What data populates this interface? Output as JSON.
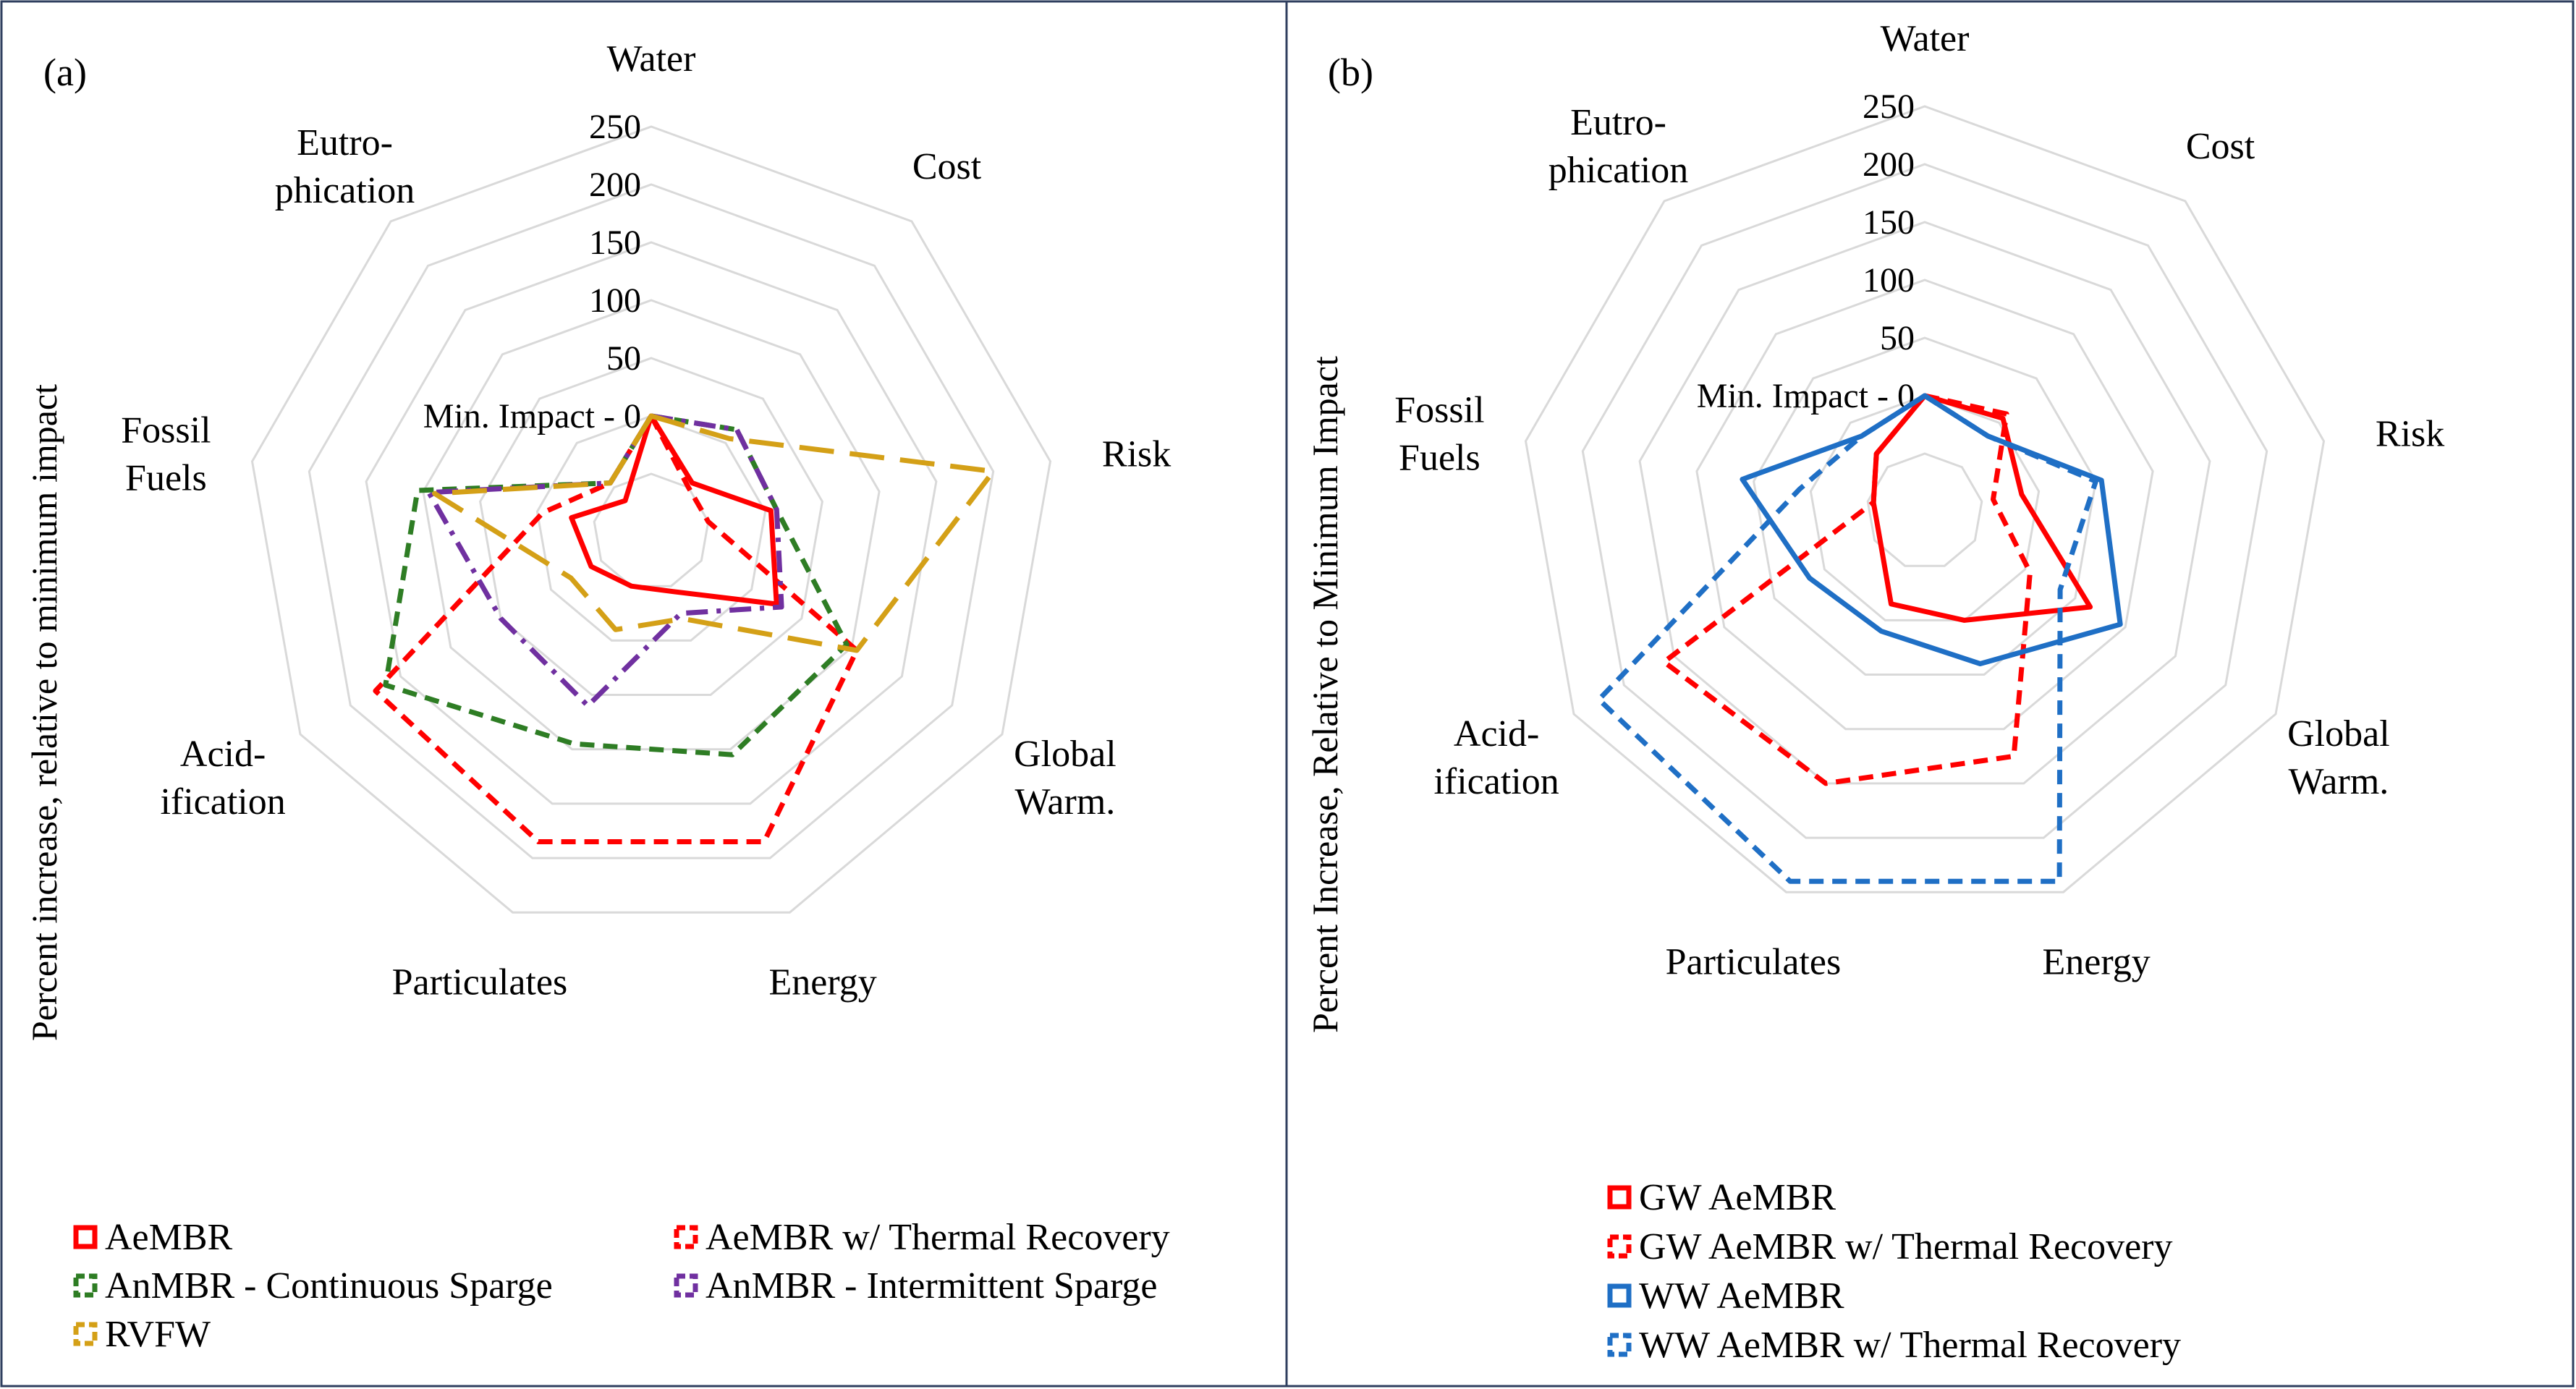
{
  "chart_data": [
    {
      "type": "radar",
      "panel_label": "(a)",
      "ylabel": "Percent increase, relative to minimum impact",
      "axes": [
        "Water",
        "Cost",
        "Risk",
        "Global\nWarm.",
        "Energy",
        "Particulates",
        "Acid-\nification",
        "Fossil\nFuels",
        "Eutro-\nphication"
      ],
      "r_ticks": [
        "Min. Impact - 0",
        "50",
        "100",
        "150",
        "200",
        "250"
      ],
      "rlim": [
        -100,
        250
      ],
      "series": [
        {
          "name": "AeMBR",
          "color": "#ff0000",
          "dash": "solid",
          "values": [
            0,
            -45,
            5,
            25,
            -45,
            -50,
            -40,
            -30,
            -65
          ]
        },
        {
          "name": "AeMBR w/ Thermal Recovery",
          "color": "#ff0000",
          "dash": "dash",
          "values": [
            0,
            -50,
            -50,
            105,
            185,
            185,
            175,
            -5,
            -45
          ]
        },
        {
          "name": "AnMBR - Continuous Sparge",
          "color": "#2e7d24",
          "dash": "dash",
          "values": [
            0,
            15,
            10,
            95,
            105,
            95,
            165,
            105,
            -45
          ]
        },
        {
          "name": "AnMBR - Intermittent Sparge",
          "color": "#7030a0",
          "dash": "dashdot",
          "values": [
            0,
            15,
            10,
            30,
            -25,
            60,
            50,
            95,
            -45
          ]
        },
        {
          "name": "RVFW",
          "color": "#d4a017",
          "dash": "longdash",
          "values": [
            0,
            5,
            200,
            105,
            -20,
            -10,
            -20,
            90,
            -45
          ]
        }
      ],
      "legend": [
        "AeMBR",
        "AeMBR w/ Thermal Recovery",
        "AnMBR - Continuous Sparge",
        "AnMBR - Intermittent Sparge",
        "RVFW"
      ]
    },
    {
      "type": "radar",
      "panel_label": "(b)",
      "ylabel": "Percent Increase, Relative to Minimum Impact",
      "axes": [
        "Water",
        "Cost",
        "Risk",
        "Global\nWarm.",
        "Energy",
        "Particulates",
        "Acid-\nification",
        "Fossil\nFuels",
        "Eutro-\nphication"
      ],
      "r_ticks": [
        "Min. Impact - 0",
        "50",
        "100",
        "150",
        "200",
        "250"
      ],
      "rlim": [
        -100,
        250
      ],
      "series": [
        {
          "name": "GW AeMBR",
          "color": "#ff0000",
          "dash": "solid",
          "values": [
            0,
            5,
            -15,
            65,
            0,
            -15,
            -55,
            -55,
            -35
          ]
        },
        {
          "name": "GW AeMBR w/ Thermal Recovery",
          "color": "#ff0000",
          "dash": "dash",
          "values": [
            0,
            10,
            -40,
            5,
            125,
            150,
            160,
            -55,
            -35
          ]
        },
        {
          "name": "WW AeMBR",
          "color": "#1f6fc5",
          "dash": "solid",
          "values": [
            0,
            -15,
            55,
            95,
            40,
            10,
            15,
            60,
            -15
          ]
        },
        {
          "name": "WW AeMBR w/ Thermal Recovery",
          "color": "#1f6fc5",
          "dash": "dash",
          "values": [
            0,
            -15,
            50,
            35,
            240,
            240,
            225,
            10,
            -15
          ]
        }
      ],
      "legend": [
        "GW AeMBR",
        "GW AeMBR w/ Thermal Recovery",
        "WW AeMBR",
        "WW AeMBR w/ Thermal Recovery"
      ]
    }
  ]
}
